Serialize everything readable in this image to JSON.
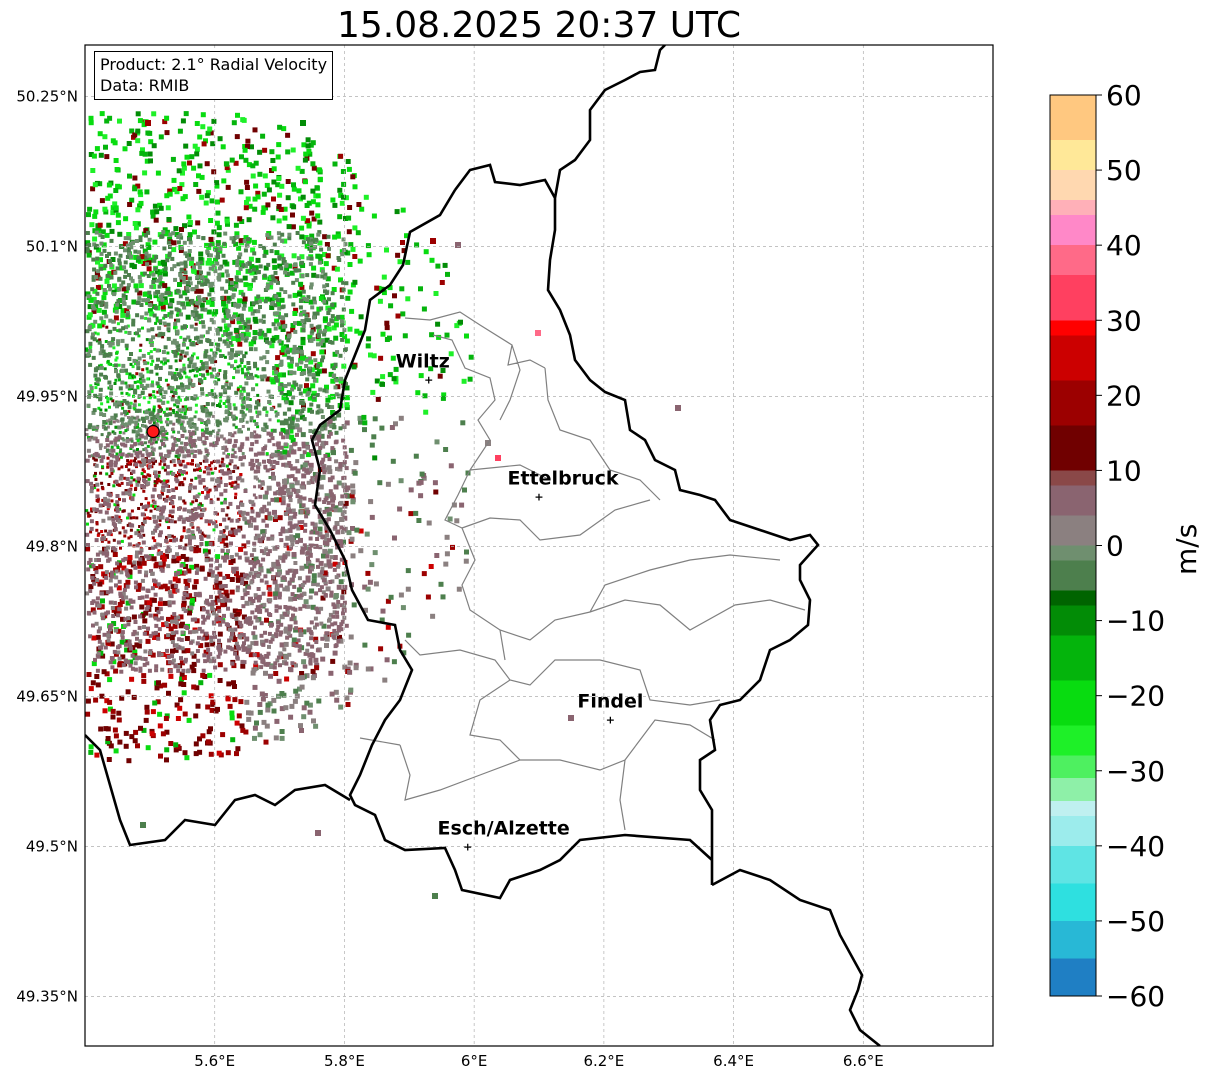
{
  "title": "15.08.2025 20:37 UTC",
  "info": {
    "product": "Product: 2.1° Radial Velocity",
    "data_source": "Data: RMIB"
  },
  "map": {
    "lon_range": [
      5.4,
      6.8
    ],
    "lat_range": [
      49.3,
      50.3
    ],
    "lon_ticks": [
      {
        "value": 5.6,
        "label": "5.6°E"
      },
      {
        "value": 5.8,
        "label": "5.8°E"
      },
      {
        "value": 6.0,
        "label": "6°E"
      },
      {
        "value": 6.2,
        "label": "6.2°E"
      },
      {
        "value": 6.4,
        "label": "6.4°E"
      },
      {
        "value": 6.6,
        "label": "6.6°E"
      }
    ],
    "lat_ticks": [
      {
        "value": 50.25,
        "label": "50.25°N"
      },
      {
        "value": 50.1,
        "label": "50.1°N"
      },
      {
        "value": 49.95,
        "label": "49.95°N"
      },
      {
        "value": 49.8,
        "label": "49.8°N"
      },
      {
        "value": 49.65,
        "label": "49.65°N"
      },
      {
        "value": 49.5,
        "label": "49.5°N"
      },
      {
        "value": 49.35,
        "label": "49.35°N"
      }
    ],
    "cities": [
      {
        "name": "Wiltz",
        "lon": 5.93,
        "lat": 49.967
      },
      {
        "name": "Ettelbruck",
        "lon": 6.1,
        "lat": 49.85
      },
      {
        "name": "Findel",
        "lon": 6.21,
        "lat": 49.627
      },
      {
        "name": "Esch/Alzette",
        "lon": 5.99,
        "lat": 49.5
      }
    ],
    "radar": {
      "lon": 5.505,
      "lat": 49.915
    }
  },
  "colorbar": {
    "label": "m/s",
    "min": -60,
    "max": 60,
    "ticks": [
      {
        "value": 60,
        "label": "60"
      },
      {
        "value": 50,
        "label": "50"
      },
      {
        "value": 40,
        "label": "40"
      },
      {
        "value": 30,
        "label": "30"
      },
      {
        "value": 20,
        "label": "20"
      },
      {
        "value": 10,
        "label": "10"
      },
      {
        "value": 0,
        "label": "0"
      },
      {
        "value": -10,
        "label": "−10"
      },
      {
        "value": -20,
        "label": "−20"
      },
      {
        "value": -30,
        "label": "−30"
      },
      {
        "value": -40,
        "label": "−40"
      },
      {
        "value": -50,
        "label": "−50"
      },
      {
        "value": -60,
        "label": "−60"
      }
    ],
    "stops": [
      {
        "value": -60,
        "color": "#1f7fc4"
      },
      {
        "value": -55,
        "color": "#28b8d6"
      },
      {
        "value": -50,
        "color": "#2ee0e0"
      },
      {
        "value": -45,
        "color": "#5fe4e4"
      },
      {
        "value": -40,
        "color": "#9cecec"
      },
      {
        "value": -36,
        "color": "#bff0f0"
      },
      {
        "value": -34,
        "color": "#8ef0a8"
      },
      {
        "value": -31,
        "color": "#4ef060"
      },
      {
        "value": -28,
        "color": "#1ef028"
      },
      {
        "value": -24,
        "color": "#08dc10"
      },
      {
        "value": -18,
        "color": "#04b40c"
      },
      {
        "value": -12,
        "color": "#028c06"
      },
      {
        "value": -8,
        "color": "#006400"
      },
      {
        "value": -6,
        "color": "#4d7f4d"
      },
      {
        "value": -2,
        "color": "#6f8f6f"
      },
      {
        "value": 0,
        "color": "#8b8080"
      },
      {
        "value": 4,
        "color": "#8a6470"
      },
      {
        "value": 8,
        "color": "#8a4848"
      },
      {
        "value": 10,
        "color": "#700000"
      },
      {
        "value": 16,
        "color": "#9c0000"
      },
      {
        "value": 22,
        "color": "#cc0000"
      },
      {
        "value": 28,
        "color": "#ff0000"
      },
      {
        "value": 30,
        "color": "#ff4060"
      },
      {
        "value": 36,
        "color": "#ff6a88"
      },
      {
        "value": 40,
        "color": "#ff88c8"
      },
      {
        "value": 44,
        "color": "#ffb0b8"
      },
      {
        "value": 46,
        "color": "#ffd8b0"
      },
      {
        "value": 50,
        "color": "#ffe898"
      },
      {
        "value": 54,
        "color": "#ffc880"
      },
      {
        "value": 60,
        "color": "#ff9a50"
      }
    ]
  }
}
